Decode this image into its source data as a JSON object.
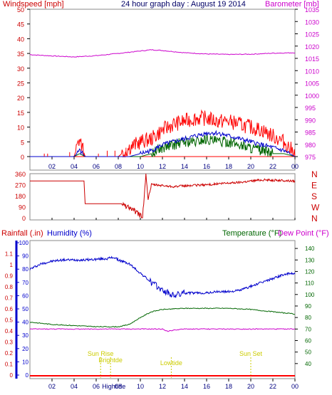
{
  "header": {
    "windspeed": "Windspeed [mph]",
    "title": "24 hour graph day : August 19 2014",
    "barometer": "Barometer [mb]"
  },
  "colors": {
    "red": "#ff0000",
    "blue": "#0000cc",
    "green": "#006600",
    "magenta": "#cc00cc",
    "darkred": "#cc0000",
    "yellow": "#cccc00",
    "axis": "#000000"
  },
  "chart_data": [
    {
      "type": "line",
      "name": "wind-panel",
      "x_ticks": [
        "02",
        "04",
        "06",
        "08",
        "10",
        "12",
        "14",
        "16",
        "18",
        "20",
        "22",
        "00"
      ],
      "y_left": {
        "label": "Windspeed [mph]",
        "ticks": [
          0,
          5,
          10,
          15,
          20,
          25,
          30,
          35,
          40,
          45,
          50
        ],
        "range": [
          0,
          50
        ]
      },
      "y_right": {
        "label": "Barometer [mb]",
        "ticks": [
          975,
          980,
          985,
          990,
          995,
          1000,
          1005,
          1010,
          1015,
          1020,
          1025,
          1030,
          1035
        ],
        "range": [
          975,
          1035
        ]
      },
      "series": [
        {
          "color": "#cc00cc",
          "axis": "right",
          "x": [
            0,
            2,
            4,
            6,
            8,
            10,
            11,
            12,
            14,
            16,
            18,
            20,
            22,
            24
          ],
          "values": [
            1016.5,
            1016,
            1015.6,
            1016.1,
            1017,
            1018,
            1018.5,
            1018.2,
            1017.3,
            1016.8,
            1016.6,
            1016.7,
            1017.1,
            1017.3
          ]
        },
        {
          "color": "#ff0000",
          "axis": "left",
          "x": [
            0,
            2,
            4,
            4.5,
            5,
            6,
            8,
            9,
            10,
            11,
            12,
            13,
            14,
            15,
            16,
            17,
            18,
            19,
            20,
            21,
            22,
            23,
            24
          ],
          "values": [
            0,
            0,
            0,
            6,
            0,
            0,
            0,
            3,
            5,
            6,
            9,
            11,
            12,
            13,
            13,
            12,
            12,
            11,
            10,
            9,
            7,
            5,
            1
          ]
        },
        {
          "color": "#0000cc",
          "axis": "left",
          "x": [
            0,
            4,
            4.5,
            5,
            9,
            10,
            11,
            12,
            13,
            14,
            15,
            16,
            17,
            18,
            19,
            20,
            21,
            22,
            23,
            24
          ],
          "values": [
            0,
            0,
            2,
            0,
            0,
            1,
            2,
            4,
            5,
            6,
            7,
            8,
            8,
            7,
            6,
            5,
            4,
            3,
            2,
            0
          ]
        },
        {
          "color": "#006600",
          "axis": "left",
          "x": [
            0,
            4,
            4.5,
            5,
            9,
            10,
            11,
            12,
            13,
            14,
            15,
            16,
            17,
            18,
            19,
            20,
            21,
            22,
            23,
            24
          ],
          "values": [
            0,
            0,
            1,
            0,
            0,
            0,
            1,
            3,
            4,
            5,
            5,
            6,
            5,
            5,
            4,
            3,
            2,
            1,
            1,
            0
          ]
        }
      ]
    },
    {
      "type": "line",
      "name": "direction-panel",
      "y_left": {
        "ticks": [
          0,
          90,
          180,
          270,
          360
        ],
        "range": [
          0,
          360
        ]
      },
      "y_right": {
        "ticks": [
          "N",
          "W",
          "S",
          "E",
          "N"
        ]
      },
      "series": [
        {
          "color": "#cc0000",
          "x": [
            0,
            4.9,
            5.0,
            8.3,
            9.0,
            9.7,
            10.2,
            10.5,
            10.7,
            11.0,
            13,
            16,
            19,
            21,
            24
          ],
          "values": [
            300,
            300,
            115,
            115,
            85,
            40,
            5,
            360,
            150,
            270,
            255,
            270,
            290,
            310,
            300
          ]
        }
      ]
    },
    {
      "type": "line",
      "name": "climate-panel",
      "headers": {
        "rain": "Rainfall (.in)",
        "hum": "Humidity (%)",
        "temp": "Temperature (°F)",
        "dew": "Dew Point (°F)"
      },
      "y_rain": {
        "ticks": [
          0,
          0.1,
          0.2,
          0.3,
          0.4,
          0.5,
          0.6,
          0.7,
          0.8,
          0.9,
          1,
          1.1
        ],
        "range": [
          0,
          1.2
        ]
      },
      "y_hum": {
        "ticks": [
          0,
          10,
          20,
          30,
          40,
          50,
          60,
          70,
          80,
          90,
          100
        ],
        "range": [
          0,
          100
        ]
      },
      "y_temp": {
        "ticks": [
          40,
          50,
          60,
          70,
          80,
          90,
          100,
          110,
          120,
          130,
          140
        ],
        "range": [
          30,
          145
        ]
      },
      "annotations": [
        {
          "text": "Sun Rise",
          "x": 6.4
        },
        {
          "text": "Brightde",
          "x": 7.3
        },
        {
          "text": "Lowtide",
          "x": 12.8
        },
        {
          "text": "Sun Set",
          "x": 20.0
        }
      ],
      "bottom_label": "Hightide",
      "series": [
        {
          "color": "#0000cc",
          "axis": "hum",
          "x": [
            0,
            1,
            2,
            3,
            5,
            7,
            7.6,
            8,
            9,
            10,
            11,
            12,
            13,
            14,
            16,
            17,
            18,
            19,
            20,
            21,
            22,
            23,
            24
          ],
          "values": [
            80,
            84,
            86,
            87,
            87,
            88,
            89,
            87,
            84,
            77,
            70,
            64,
            60,
            62,
            62,
            63,
            63,
            64,
            67,
            70,
            73,
            76,
            77
          ]
        },
        {
          "color": "#006600",
          "axis": "temp",
          "x": [
            0,
            2,
            4,
            6,
            8,
            9,
            10,
            11,
            12,
            14,
            16,
            18,
            20,
            22,
            24
          ],
          "values": [
            76,
            74,
            73,
            72,
            72,
            74,
            80,
            85,
            87,
            88,
            88,
            88,
            87,
            85,
            83
          ]
        },
        {
          "color": "#cc00cc",
          "axis": "temp",
          "x": [
            0,
            4,
            8,
            10,
            12,
            12.5,
            13,
            14,
            16,
            20,
            24
          ],
          "values": [
            70,
            70,
            70,
            70,
            70,
            68,
            69,
            70,
            70,
            70,
            70
          ]
        },
        {
          "color": "#cc0000",
          "axis": "rain",
          "x": [
            0,
            24
          ],
          "values": [
            0,
            0
          ]
        }
      ]
    }
  ]
}
